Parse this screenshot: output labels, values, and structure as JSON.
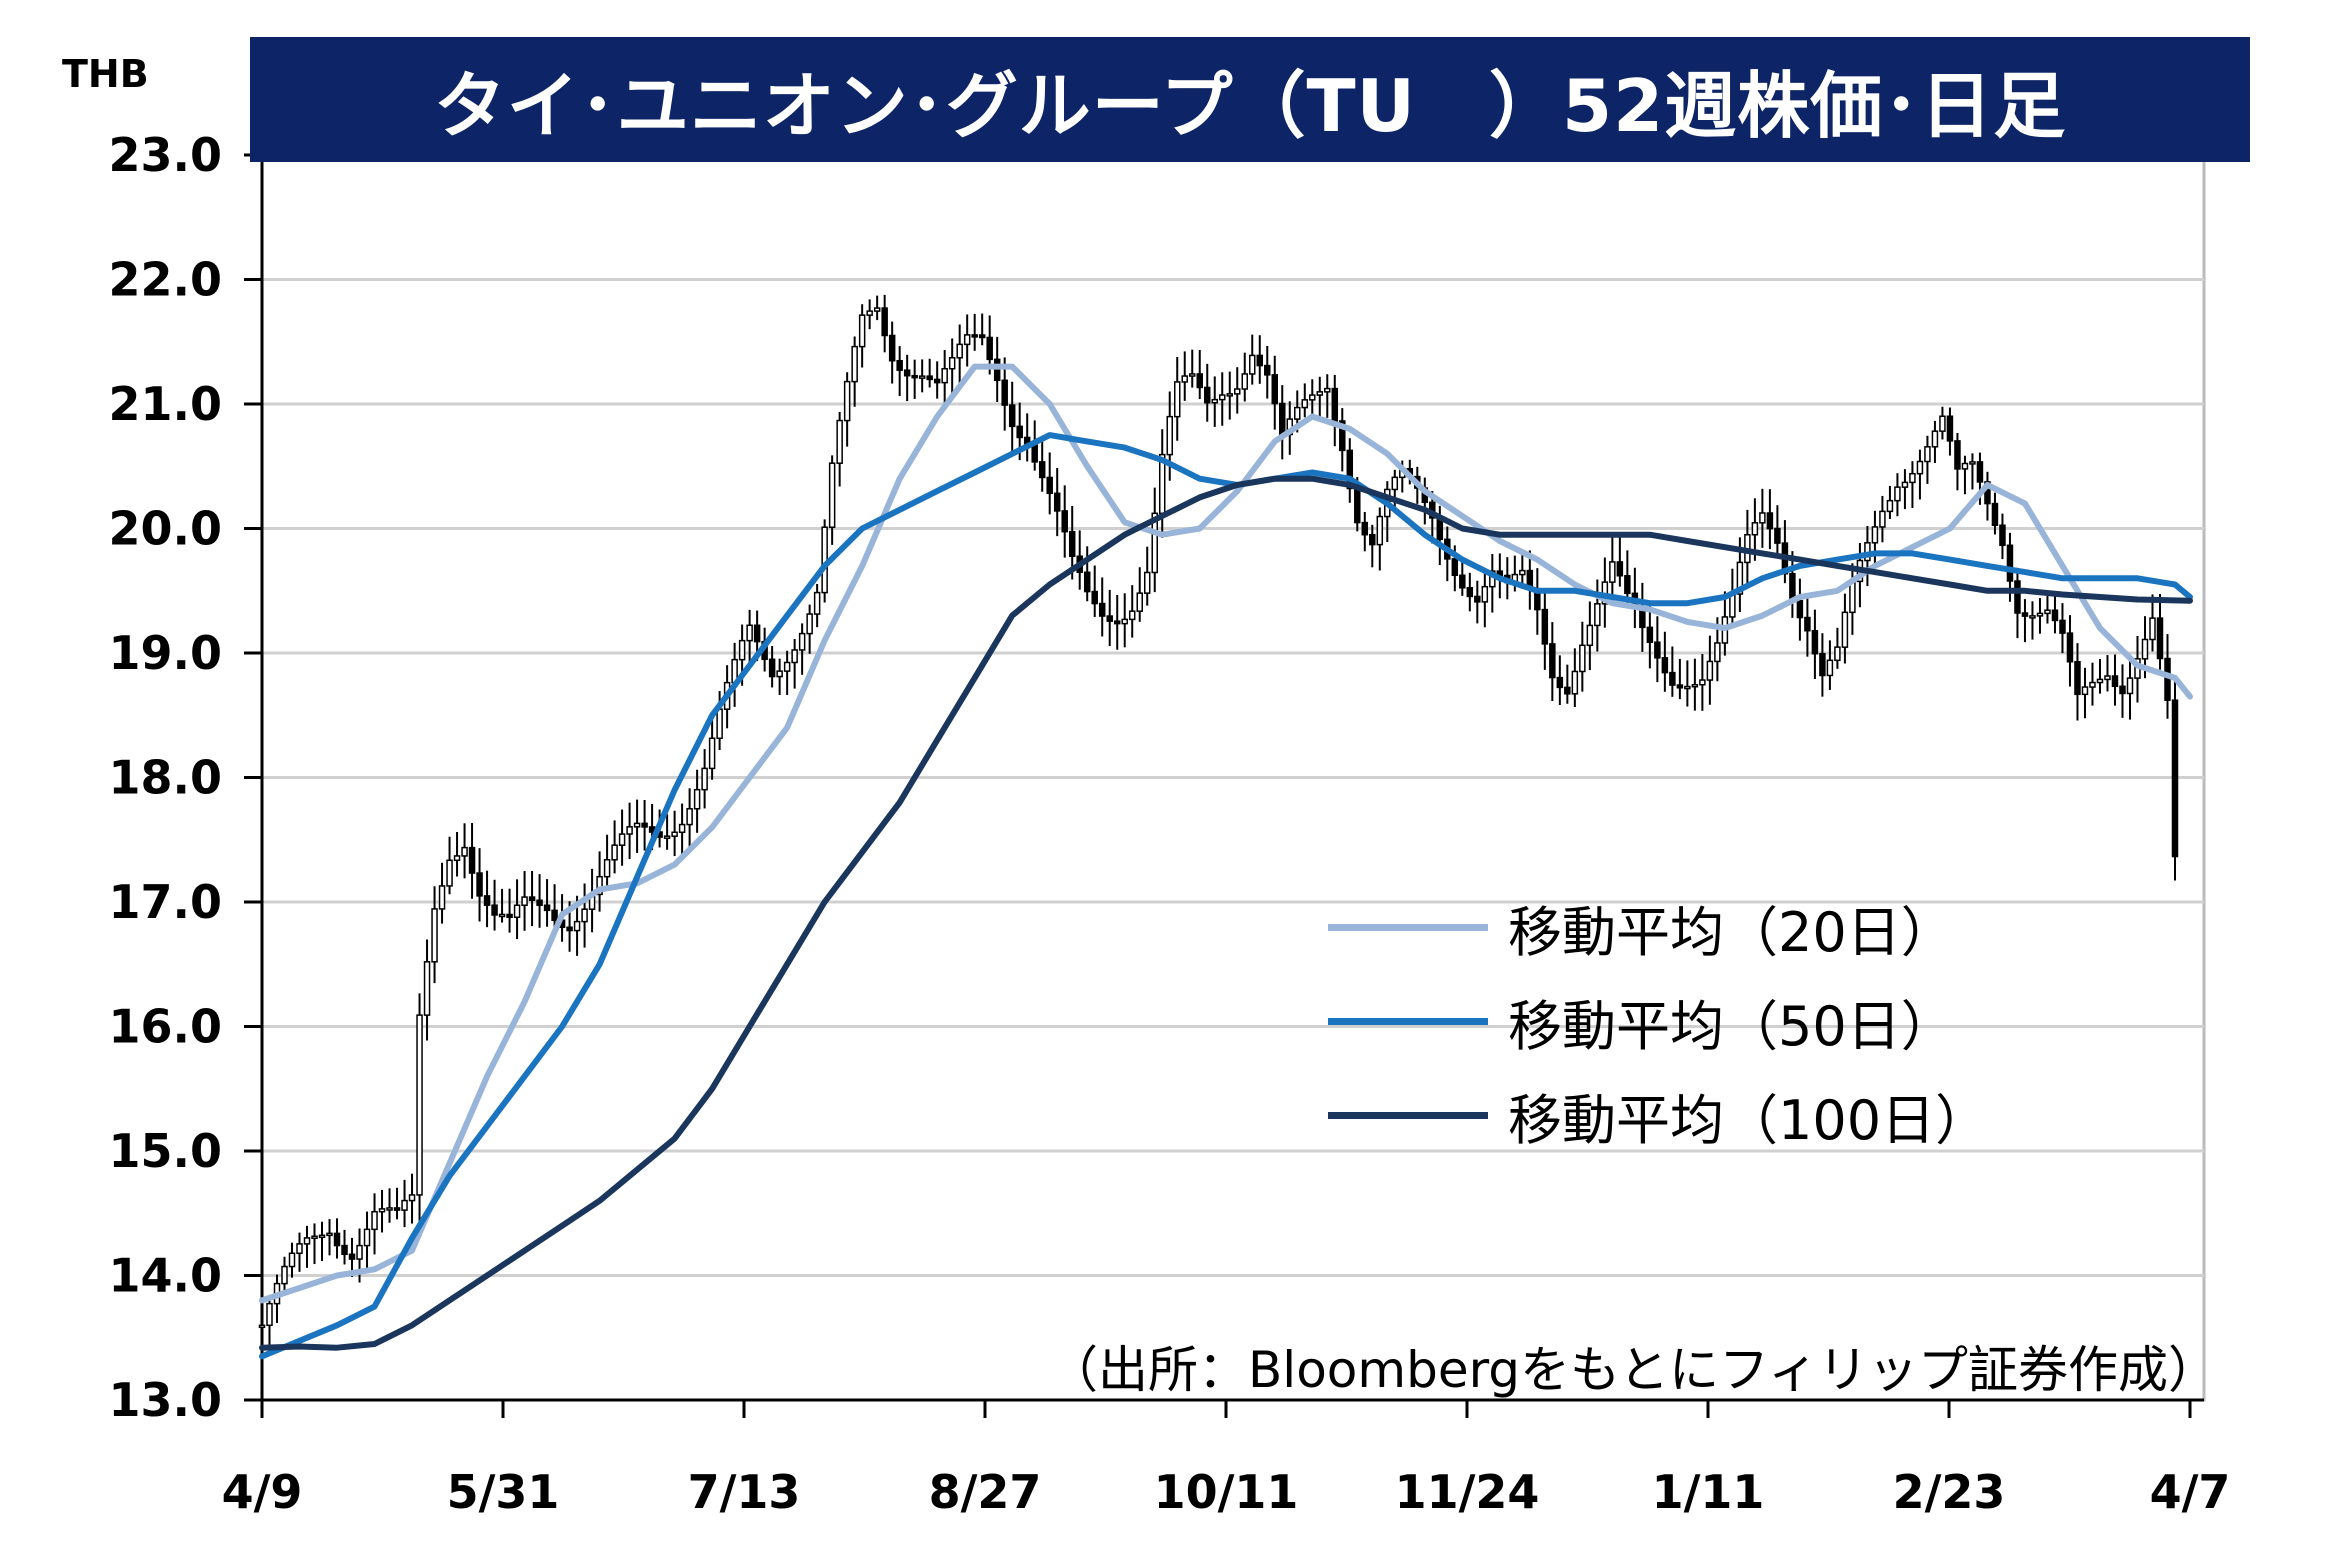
{
  "chart_data": {
    "type": "candlestick",
    "title": "タイ･ユニオン･グループ（TU　）52週株価･日足",
    "ylabel": "THB",
    "ylim": [
      13.0,
      23.0
    ],
    "yticks": [
      "13.0",
      "14.0",
      "15.0",
      "16.0",
      "17.0",
      "18.0",
      "19.0",
      "20.0",
      "21.0",
      "22.0",
      "23.0"
    ],
    "xtick_labels": [
      "4/9",
      "5/31",
      "7/13",
      "8/27",
      "10/11",
      "11/24",
      "1/11",
      "2/23",
      "4/7"
    ],
    "grid": true,
    "legend_position": "right-middle",
    "source_note": "（出所：Bloombergをもとにフィリップ証券作成）",
    "close_series": [
      [
        0,
        13.6
      ],
      [
        3,
        13.9
      ],
      [
        6,
        14.2
      ],
      [
        9,
        14.45
      ],
      [
        12,
        14.3
      ],
      [
        15,
        14.5
      ],
      [
        18,
        14.35
      ],
      [
        20,
        14.5
      ],
      [
        21,
        16.0
      ],
      [
        23,
        17.0
      ],
      [
        25,
        17.5
      ],
      [
        27,
        17.6
      ],
      [
        29,
        17.1
      ],
      [
        31,
        16.8
      ],
      [
        33,
        16.7
      ],
      [
        35,
        16.9
      ],
      [
        38,
        17.0
      ],
      [
        41,
        16.95
      ],
      [
        44,
        17.1
      ],
      [
        47,
        17.3
      ],
      [
        50,
        17.5
      ],
      [
        53,
        17.6
      ],
      [
        56,
        17.8
      ],
      [
        59,
        18.1
      ],
      [
        62,
        18.6
      ],
      [
        65,
        19.1
      ],
      [
        68,
        18.9
      ],
      [
        71,
        19.2
      ],
      [
        74,
        19.5
      ],
      [
        76,
        20.4
      ],
      [
        78,
        21.0
      ],
      [
        80,
        21.6
      ],
      [
        82,
        21.8
      ],
      [
        84,
        21.5
      ],
      [
        86,
        21.4
      ],
      [
        88,
        21.3
      ],
      [
        90,
        21.1
      ],
      [
        92,
        21.2
      ],
      [
        94,
        21.4
      ],
      [
        96,
        21.5
      ],
      [
        98,
        21.3
      ],
      [
        100,
        21.0
      ],
      [
        102,
        20.8
      ],
      [
        104,
        20.4
      ],
      [
        106,
        20.0
      ],
      [
        108,
        19.6
      ],
      [
        110,
        19.4
      ],
      [
        112,
        19.35
      ],
      [
        114,
        19.4
      ],
      [
        116,
        19.5
      ],
      [
        118,
        19.7
      ],
      [
        120,
        20.5
      ],
      [
        122,
        21.0
      ],
      [
        124,
        21.1
      ],
      [
        126,
        21.0
      ],
      [
        128,
        21.2
      ],
      [
        130,
        21.3
      ],
      [
        132,
        21.5
      ],
      [
        134,
        21.2
      ],
      [
        136,
        20.6
      ],
      [
        138,
        20.8
      ],
      [
        140,
        21.0
      ],
      [
        142,
        21.2
      ],
      [
        144,
        20.8
      ],
      [
        146,
        20.2
      ],
      [
        148,
        19.9
      ],
      [
        150,
        20.2
      ],
      [
        152,
        20.3
      ],
      [
        154,
        20.2
      ],
      [
        156,
        20.1
      ],
      [
        158,
        19.9
      ],
      [
        160,
        19.7
      ],
      [
        162,
        19.5
      ],
      [
        164,
        19.6
      ],
      [
        166,
        19.4
      ],
      [
        168,
        19.5
      ],
      [
        170,
        19.3
      ],
      [
        172,
        18.9
      ],
      [
        174,
        18.85
      ],
      [
        176,
        19.2
      ],
      [
        178,
        19.4
      ],
      [
        180,
        19.6
      ],
      [
        182,
        19.3
      ],
      [
        184,
        19.1
      ],
      [
        186,
        19.0
      ],
      [
        188,
        18.9
      ],
      [
        190,
        18.9
      ],
      [
        192,
        18.85
      ],
      [
        194,
        19.0
      ],
      [
        196,
        19.3
      ],
      [
        198,
        19.8
      ],
      [
        200,
        20.1
      ],
      [
        202,
        20.0
      ],
      [
        204,
        19.6
      ],
      [
        206,
        19.3
      ],
      [
        208,
        18.8
      ],
      [
        210,
        18.9
      ],
      [
        212,
        19.4
      ],
      [
        214,
        19.8
      ],
      [
        216,
        20.2
      ],
      [
        218,
        20.5
      ],
      [
        220,
        20.6
      ],
      [
        222,
        20.7
      ],
      [
        224,
        20.8
      ],
      [
        226,
        20.3
      ],
      [
        228,
        20.4
      ],
      [
        230,
        20.2
      ],
      [
        232,
        20.0
      ],
      [
        234,
        19.5
      ],
      [
        236,
        19.4
      ],
      [
        238,
        19.3
      ],
      [
        240,
        19.0
      ],
      [
        242,
        18.5
      ],
      [
        244,
        18.7
      ],
      [
        246,
        18.9
      ],
      [
        248,
        18.85
      ],
      [
        250,
        19.1
      ],
      [
        252,
        19.3
      ],
      [
        254,
        18.5
      ],
      [
        255,
        17.2
      ]
    ],
    "series": [
      {
        "name": "移動平均（20日）",
        "color": "#98b4d8",
        "points": [
          [
            0,
            13.8
          ],
          [
            5,
            13.9
          ],
          [
            10,
            14.0
          ],
          [
            15,
            14.05
          ],
          [
            20,
            14.2
          ],
          [
            25,
            14.9
          ],
          [
            30,
            15.6
          ],
          [
            35,
            16.2
          ],
          [
            40,
            16.9
          ],
          [
            45,
            17.1
          ],
          [
            50,
            17.15
          ],
          [
            55,
            17.3
          ],
          [
            60,
            17.6
          ],
          [
            65,
            18.0
          ],
          [
            70,
            18.4
          ],
          [
            75,
            19.1
          ],
          [
            80,
            19.7
          ],
          [
            85,
            20.4
          ],
          [
            90,
            20.9
          ],
          [
            95,
            21.3
          ],
          [
            100,
            21.3
          ],
          [
            105,
            21.0
          ],
          [
            110,
            20.5
          ],
          [
            115,
            20.05
          ],
          [
            120,
            19.95
          ],
          [
            125,
            20.0
          ],
          [
            130,
            20.3
          ],
          [
            135,
            20.7
          ],
          [
            140,
            20.9
          ],
          [
            145,
            20.8
          ],
          [
            150,
            20.6
          ],
          [
            155,
            20.3
          ],
          [
            160,
            20.1
          ],
          [
            165,
            19.9
          ],
          [
            170,
            19.75
          ],
          [
            175,
            19.55
          ],
          [
            180,
            19.4
          ],
          [
            185,
            19.35
          ],
          [
            190,
            19.25
          ],
          [
            195,
            19.2
          ],
          [
            200,
            19.3
          ],
          [
            205,
            19.45
          ],
          [
            210,
            19.5
          ],
          [
            215,
            19.7
          ],
          [
            220,
            19.85
          ],
          [
            225,
            20.0
          ],
          [
            230,
            20.35
          ],
          [
            235,
            20.2
          ],
          [
            240,
            19.7
          ],
          [
            245,
            19.2
          ],
          [
            250,
            18.9
          ],
          [
            255,
            18.8
          ],
          [
            257,
            18.65
          ]
        ]
      },
      {
        "name": "移動平均（50日）",
        "color": "#1a74c0",
        "points": [
          [
            0,
            13.35
          ],
          [
            10,
            13.6
          ],
          [
            15,
            13.75
          ],
          [
            20,
            14.3
          ],
          [
            25,
            14.8
          ],
          [
            30,
            15.2
          ],
          [
            35,
            15.6
          ],
          [
            40,
            16.0
          ],
          [
            45,
            16.5
          ],
          [
            50,
            17.2
          ],
          [
            55,
            17.9
          ],
          [
            60,
            18.5
          ],
          [
            65,
            18.9
          ],
          [
            70,
            19.3
          ],
          [
            75,
            19.7
          ],
          [
            80,
            20.0
          ],
          [
            85,
            20.15
          ],
          [
            90,
            20.3
          ],
          [
            95,
            20.45
          ],
          [
            100,
            20.6
          ],
          [
            105,
            20.75
          ],
          [
            110,
            20.7
          ],
          [
            115,
            20.65
          ],
          [
            120,
            20.55
          ],
          [
            125,
            20.4
          ],
          [
            130,
            20.35
          ],
          [
            135,
            20.4
          ],
          [
            140,
            20.45
          ],
          [
            145,
            20.4
          ],
          [
            150,
            20.2
          ],
          [
            155,
            19.95
          ],
          [
            160,
            19.75
          ],
          [
            165,
            19.6
          ],
          [
            170,
            19.5
          ],
          [
            175,
            19.5
          ],
          [
            180,
            19.45
          ],
          [
            185,
            19.4
          ],
          [
            190,
            19.4
          ],
          [
            195,
            19.45
          ],
          [
            200,
            19.6
          ],
          [
            205,
            19.7
          ],
          [
            210,
            19.75
          ],
          [
            215,
            19.8
          ],
          [
            220,
            19.8
          ],
          [
            225,
            19.75
          ],
          [
            230,
            19.7
          ],
          [
            235,
            19.65
          ],
          [
            240,
            19.6
          ],
          [
            245,
            19.6
          ],
          [
            250,
            19.6
          ],
          [
            255,
            19.55
          ],
          [
            257,
            19.45
          ]
        ]
      },
      {
        "name": "移動平均（100日）",
        "color": "#1a365d",
        "points": [
          [
            0,
            13.42
          ],
          [
            5,
            13.43
          ],
          [
            10,
            13.42
          ],
          [
            15,
            13.45
          ],
          [
            20,
            13.6
          ],
          [
            25,
            13.8
          ],
          [
            30,
            14.0
          ],
          [
            35,
            14.2
          ],
          [
            40,
            14.4
          ],
          [
            45,
            14.6
          ],
          [
            50,
            14.85
          ],
          [
            55,
            15.1
          ],
          [
            60,
            15.5
          ],
          [
            65,
            16.0
          ],
          [
            70,
            16.5
          ],
          [
            75,
            17.0
          ],
          [
            80,
            17.4
          ],
          [
            85,
            17.8
          ],
          [
            90,
            18.3
          ],
          [
            95,
            18.8
          ],
          [
            100,
            19.3
          ],
          [
            105,
            19.55
          ],
          [
            110,
            19.75
          ],
          [
            115,
            19.95
          ],
          [
            120,
            20.1
          ],
          [
            125,
            20.25
          ],
          [
            130,
            20.35
          ],
          [
            135,
            20.4
          ],
          [
            140,
            20.4
          ],
          [
            145,
            20.35
          ],
          [
            150,
            20.25
          ],
          [
            155,
            20.15
          ],
          [
            160,
            20.0
          ],
          [
            165,
            19.95
          ],
          [
            170,
            19.95
          ],
          [
            175,
            19.95
          ],
          [
            180,
            19.95
          ],
          [
            185,
            19.95
          ],
          [
            190,
            19.9
          ],
          [
            195,
            19.85
          ],
          [
            200,
            19.8
          ],
          [
            205,
            19.75
          ],
          [
            210,
            19.7
          ],
          [
            215,
            19.65
          ],
          [
            220,
            19.6
          ],
          [
            225,
            19.55
          ],
          [
            230,
            19.5
          ],
          [
            235,
            19.5
          ],
          [
            240,
            19.47
          ],
          [
            245,
            19.45
          ],
          [
            250,
            19.43
          ],
          [
            257,
            19.42
          ]
        ]
      }
    ]
  },
  "colors": {
    "title_bg": "#0d2466",
    "grid": "#d0d0d0",
    "candle": "#000000"
  }
}
